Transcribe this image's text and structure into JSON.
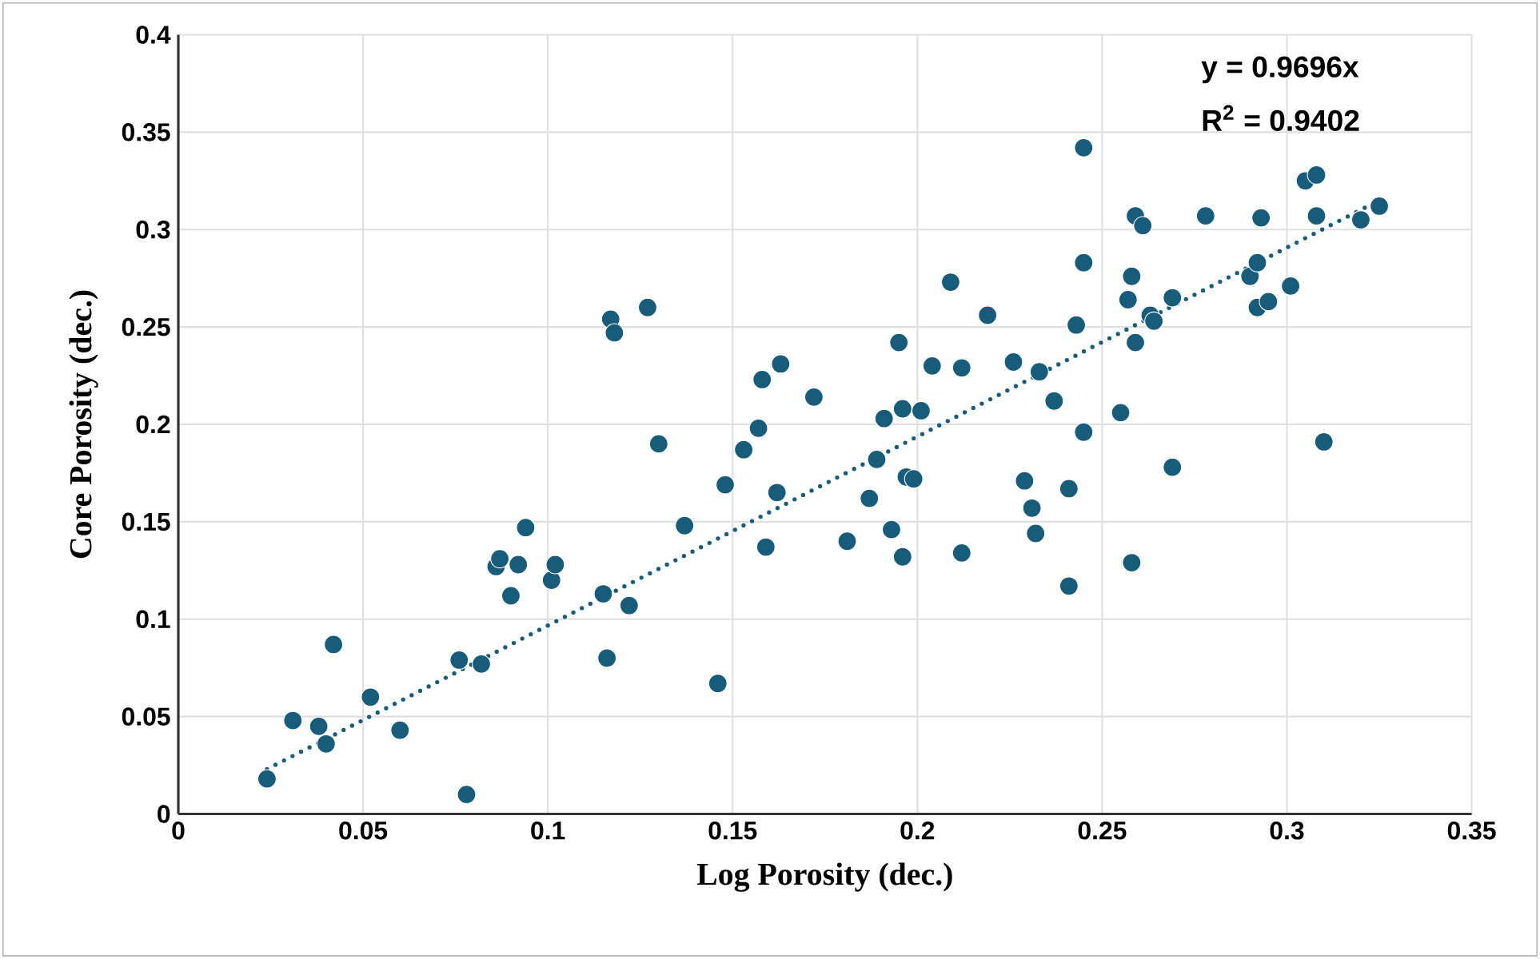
{
  "chart_data": {
    "type": "scatter",
    "xlabel": "Log Porosity (dec.)",
    "ylabel": "Core Porosity (dec.)",
    "xlim": [
      0,
      0.35
    ],
    "xticks": [
      0,
      0.05,
      0.1,
      0.15,
      0.2,
      0.25,
      0.3,
      0.35
    ],
    "ylim": [
      0,
      0.4
    ],
    "yticks": [
      0,
      0.05,
      0.1,
      0.15,
      0.2,
      0.25,
      0.3,
      0.35,
      0.4
    ],
    "grid": true,
    "annotations": [
      "y = 0.9696x",
      "R$^{2}$ = 0.9402"
    ],
    "series": [
      {
        "marker": "circle",
        "color": "#185c7c",
        "x": [
          0.024,
          0.031,
          0.038,
          0.04,
          0.042,
          0.052,
          0.06,
          0.076,
          0.078,
          0.082,
          0.086,
          0.087,
          0.09,
          0.092,
          0.094,
          0.101,
          0.102,
          0.115,
          0.116,
          0.117,
          0.118,
          0.122,
          0.127,
          0.13,
          0.137,
          0.146,
          0.148,
          0.153,
          0.157,
          0.158,
          0.159,
          0.162,
          0.163,
          0.172,
          0.181,
          0.187,
          0.189,
          0.191,
          0.193,
          0.195,
          0.196,
          0.196,
          0.197,
          0.199,
          0.201,
          0.204,
          0.209,
          0.212,
          0.212,
          0.219,
          0.226,
          0.229,
          0.231,
          0.232,
          0.233,
          0.237,
          0.241,
          0.241,
          0.243,
          0.245,
          0.245,
          0.245,
          0.255,
          0.257,
          0.258,
          0.258,
          0.259,
          0.259,
          0.261,
          0.263,
          0.264,
          0.269,
          0.269,
          0.278,
          0.29,
          0.292,
          0.293,
          0.292,
          0.295,
          0.301,
          0.305,
          0.308,
          0.308,
          0.31,
          0.32,
          0.325
        ],
        "values": [
          0.018,
          0.048,
          0.045,
          0.036,
          0.087,
          0.06,
          0.043,
          0.079,
          0.01,
          0.077,
          0.127,
          0.131,
          0.112,
          0.128,
          0.147,
          0.12,
          0.128,
          0.113,
          0.08,
          0.254,
          0.247,
          0.107,
          0.26,
          0.19,
          0.148,
          0.067,
          0.169,
          0.187,
          0.198,
          0.223,
          0.137,
          0.165,
          0.231,
          0.214,
          0.14,
          0.162,
          0.182,
          0.203,
          0.146,
          0.242,
          0.208,
          0.132,
          0.173,
          0.172,
          0.207,
          0.23,
          0.273,
          0.134,
          0.229,
          0.256,
          0.232,
          0.171,
          0.157,
          0.144,
          0.227,
          0.212,
          0.117,
          0.167,
          0.251,
          0.342,
          0.283,
          0.196,
          0.206,
          0.264,
          0.276,
          0.129,
          0.307,
          0.242,
          0.302,
          0.256,
          0.253,
          0.265,
          0.178,
          0.307,
          0.276,
          0.283,
          0.306,
          0.26,
          0.263,
          0.271,
          0.325,
          0.328,
          0.307,
          0.191,
          0.305,
          0.312
        ]
      },
      {
        "type": "line",
        "line_style": "dotted",
        "marker": "none",
        "color": "#185c7c",
        "x": [
          0.024,
          0.325
        ],
        "values": [
          0.023,
          0.315
        ]
      }
    ]
  }
}
